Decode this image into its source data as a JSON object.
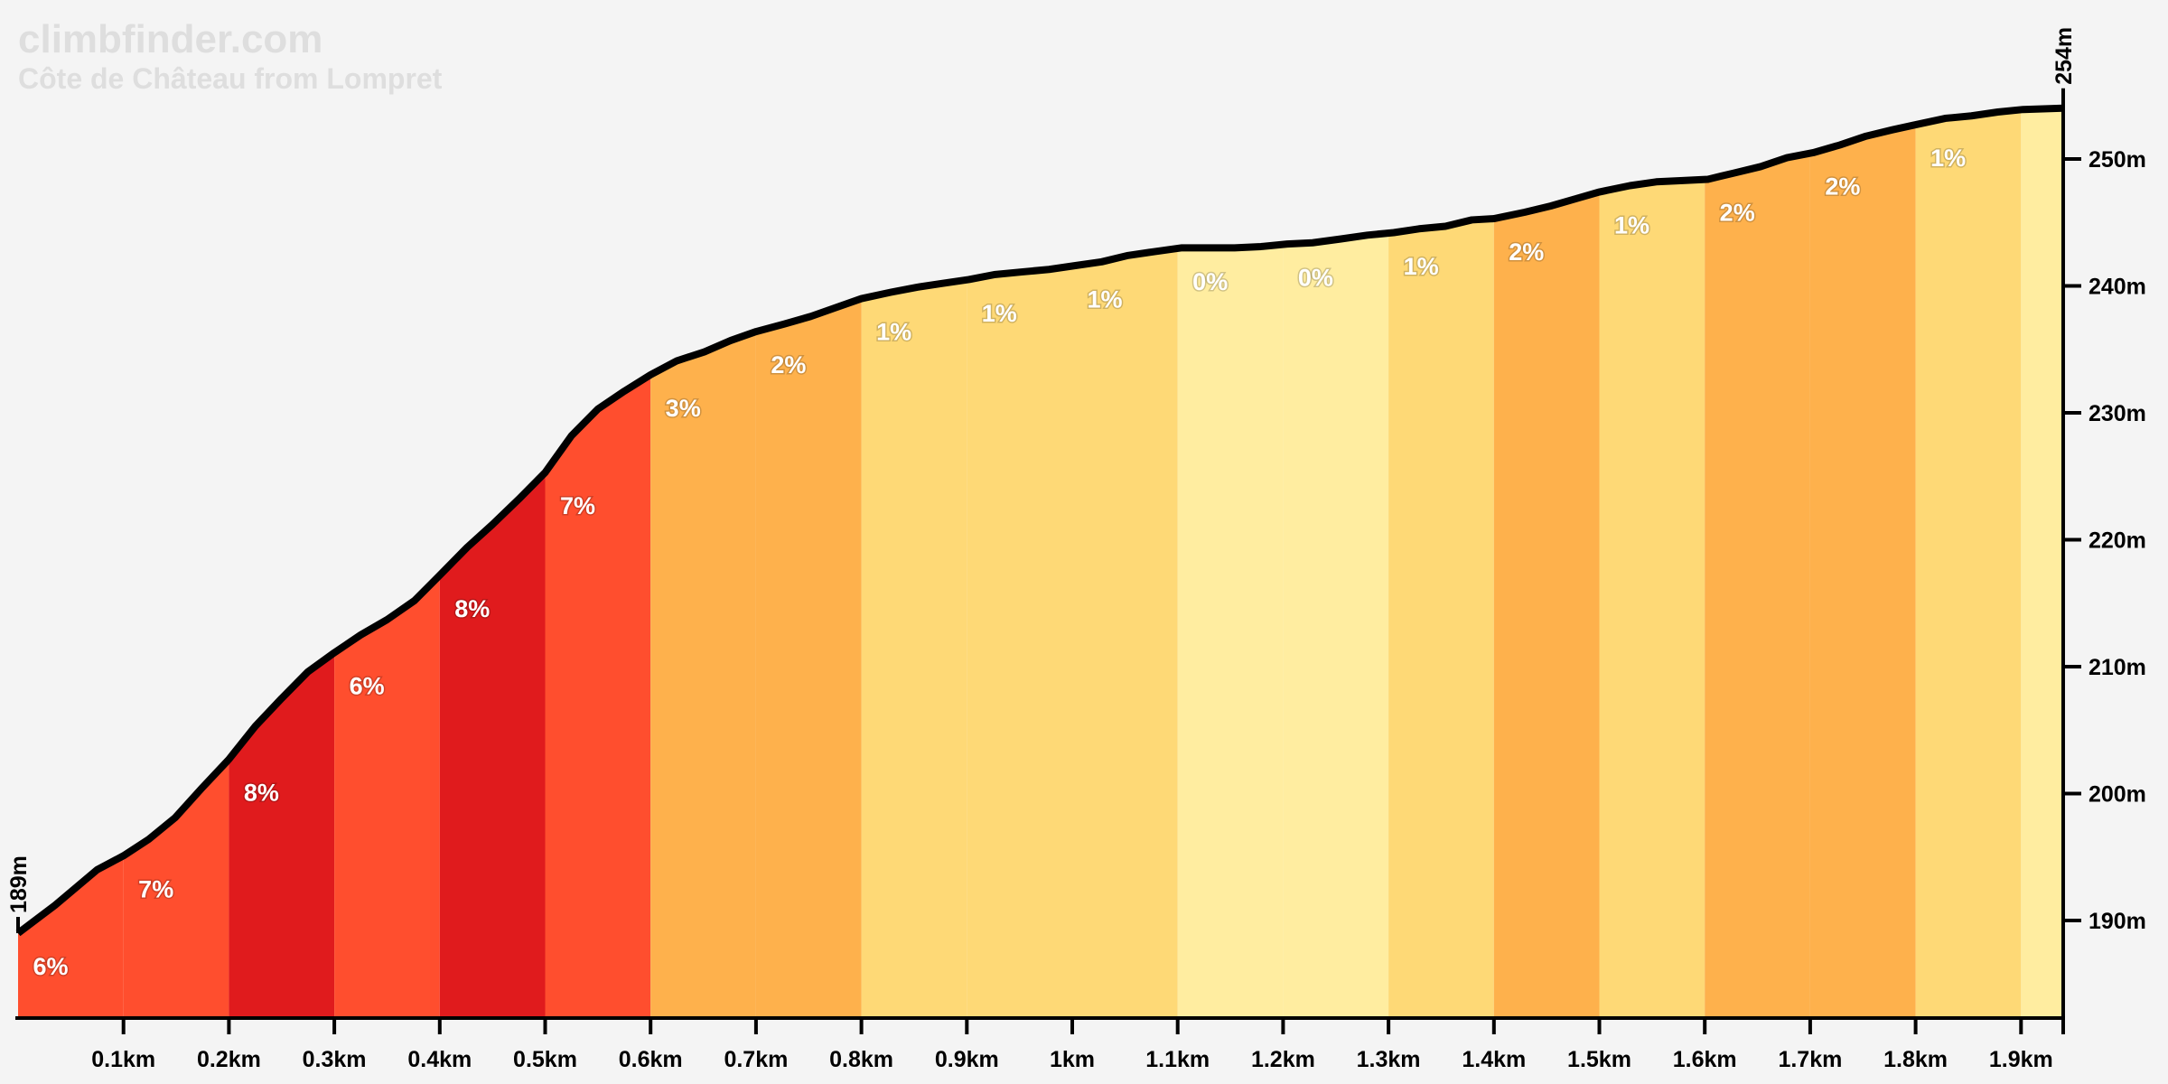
{
  "header": {
    "site": "climbfinder.com",
    "climb_name": "Côte de Château from Lompret"
  },
  "chart_data": {
    "type": "area",
    "title": "Côte de Château from Lompret",
    "xlabel": "",
    "ylabel": "",
    "x_unit": "km",
    "y_unit": "m",
    "xlim": [
      0,
      1.94
    ],
    "ylim": [
      182.3,
      262.5
    ],
    "grid": false,
    "start_elevation_label": "189m",
    "end_elevation_label": "254m",
    "x_ticks": [
      "0.1km",
      "0.2km",
      "0.3km",
      "0.4km",
      "0.5km",
      "0.6km",
      "0.7km",
      "0.8km",
      "0.9km",
      "1km",
      "1.1km",
      "1.2km",
      "1.3km",
      "1.4km",
      "1.5km",
      "1.6km",
      "1.7km",
      "1.8km",
      "1.9km"
    ],
    "x_tick_values": [
      0.1,
      0.2,
      0.3,
      0.4,
      0.5,
      0.6,
      0.7,
      0.8,
      0.9,
      1.0,
      1.1,
      1.2,
      1.3,
      1.4,
      1.5,
      1.6,
      1.7,
      1.8,
      1.9
    ],
    "y_ticks": [
      "190m",
      "200m",
      "210m",
      "220m",
      "230m",
      "240m",
      "250m"
    ],
    "y_tick_values": [
      190,
      200,
      210,
      220,
      230,
      240,
      250
    ],
    "profile": [
      [
        0,
        189.0
      ],
      [
        0.035,
        191.2
      ],
      [
        0.075,
        194.0
      ],
      [
        0.1,
        195.1
      ],
      [
        0.124,
        196.4
      ],
      [
        0.149,
        198.1
      ],
      [
        0.174,
        200.4
      ],
      [
        0.2,
        202.7
      ],
      [
        0.225,
        205.3
      ],
      [
        0.25,
        207.5
      ],
      [
        0.275,
        209.6
      ],
      [
        0.3,
        211.1
      ],
      [
        0.325,
        212.5
      ],
      [
        0.35,
        213.7
      ],
      [
        0.376,
        215.2
      ],
      [
        0.4,
        217.2
      ],
      [
        0.426,
        219.4
      ],
      [
        0.45,
        221.2
      ],
      [
        0.475,
        223.2
      ],
      [
        0.5,
        225.3
      ],
      [
        0.525,
        228.2
      ],
      [
        0.55,
        230.3
      ],
      [
        0.575,
        231.7
      ],
      [
        0.6,
        233.0
      ],
      [
        0.625,
        234.1
      ],
      [
        0.651,
        234.8
      ],
      [
        0.676,
        235.7
      ],
      [
        0.7,
        236.4
      ],
      [
        0.727,
        237.0
      ],
      [
        0.752,
        237.6
      ],
      [
        0.776,
        238.3
      ],
      [
        0.8,
        239.0
      ],
      [
        0.828,
        239.5
      ],
      [
        0.853,
        239.9
      ],
      [
        0.877,
        240.2
      ],
      [
        0.902,
        240.5
      ],
      [
        0.927,
        240.9
      ],
      [
        0.952,
        241.1
      ],
      [
        0.978,
        241.3
      ],
      [
        1.003,
        241.6
      ],
      [
        1.028,
        241.9
      ],
      [
        1.053,
        242.4
      ],
      [
        1.078,
        242.7
      ],
      [
        1.104,
        243.0
      ],
      [
        1.129,
        243.0
      ],
      [
        1.154,
        243.0
      ],
      [
        1.179,
        243.1
      ],
      [
        1.204,
        243.3
      ],
      [
        1.228,
        243.4
      ],
      [
        1.255,
        243.7
      ],
      [
        1.28,
        244.0
      ],
      [
        1.305,
        244.2
      ],
      [
        1.329,
        244.5
      ],
      [
        1.354,
        244.7
      ],
      [
        1.379,
        245.2
      ],
      [
        1.4,
        245.3
      ],
      [
        1.429,
        245.8
      ],
      [
        1.454,
        246.3
      ],
      [
        1.479,
        246.9
      ],
      [
        1.5,
        247.4
      ],
      [
        1.529,
        247.9
      ],
      [
        1.554,
        248.2
      ],
      [
        1.579,
        248.3
      ],
      [
        1.603,
        248.4
      ],
      [
        1.628,
        248.9
      ],
      [
        1.653,
        249.4
      ],
      [
        1.678,
        250.1
      ],
      [
        1.703,
        250.5
      ],
      [
        1.728,
        251.1
      ],
      [
        1.753,
        251.8
      ],
      [
        1.778,
        252.3
      ],
      [
        1.8,
        252.7
      ],
      [
        1.828,
        253.2
      ],
      [
        1.853,
        253.4
      ],
      [
        1.878,
        253.7
      ],
      [
        1.902,
        253.9
      ],
      [
        1.94,
        254.0
      ]
    ],
    "segments": [
      {
        "start": 0.0,
        "end": 0.1,
        "grade": "6%",
        "color": "#ff4e2e"
      },
      {
        "start": 0.1,
        "end": 0.2,
        "grade": "7%",
        "color": "#ff4e2e"
      },
      {
        "start": 0.2,
        "end": 0.3,
        "grade": "8%",
        "color": "#e01b1d"
      },
      {
        "start": 0.3,
        "end": 0.4,
        "grade": "6%",
        "color": "#ff4e2e"
      },
      {
        "start": 0.4,
        "end": 0.5,
        "grade": "8%",
        "color": "#e01b1d"
      },
      {
        "start": 0.5,
        "end": 0.6,
        "grade": "7%",
        "color": "#ff4e2e"
      },
      {
        "start": 0.6,
        "end": 0.7,
        "grade": "3%",
        "color": "#feb14c"
      },
      {
        "start": 0.7,
        "end": 0.8,
        "grade": "2%",
        "color": "#feb14c"
      },
      {
        "start": 0.8,
        "end": 0.9,
        "grade": "1%",
        "color": "#fed976"
      },
      {
        "start": 0.9,
        "end": 1.0,
        "grade": "1%",
        "color": "#fed976"
      },
      {
        "start": 1.0,
        "end": 1.1,
        "grade": "1%",
        "color": "#fed976"
      },
      {
        "start": 1.1,
        "end": 1.2,
        "grade": "0%",
        "color": "#ffeda0"
      },
      {
        "start": 1.2,
        "end": 1.3,
        "grade": "0%",
        "color": "#ffeda0"
      },
      {
        "start": 1.3,
        "end": 1.4,
        "grade": "1%",
        "color": "#fed976"
      },
      {
        "start": 1.4,
        "end": 1.5,
        "grade": "2%",
        "color": "#feb14c"
      },
      {
        "start": 1.5,
        "end": 1.6,
        "grade": "1%",
        "color": "#fed976"
      },
      {
        "start": 1.6,
        "end": 1.7,
        "grade": "2%",
        "color": "#feb14c"
      },
      {
        "start": 1.7,
        "end": 1.8,
        "grade": "2%",
        "color": "#feb14c"
      },
      {
        "start": 1.8,
        "end": 1.9,
        "grade": "1%",
        "color": "#fed976"
      },
      {
        "start": 1.9,
        "end": 1.94,
        "grade": "",
        "color": "#ffeda0"
      }
    ],
    "line_color": "#000000",
    "background_color": "#f4f4f4"
  }
}
